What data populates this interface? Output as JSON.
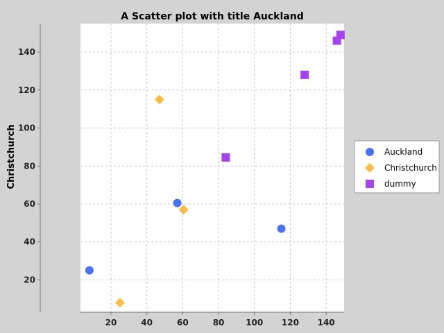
{
  "chart_data": {
    "type": "scatter",
    "title": "A Scatter plot with title Auckland",
    "xlabel": "",
    "ylabel": "Christchurch",
    "xlim": [
      3,
      150
    ],
    "ylim": [
      3,
      155
    ],
    "xticks": [
      20,
      40,
      60,
      80,
      100,
      120,
      140
    ],
    "yticks": [
      20,
      40,
      60,
      80,
      100,
      120,
      140
    ],
    "grid": true,
    "legend_position": "right",
    "series": [
      {
        "name": "Auckland",
        "marker": "circle",
        "color": "#4b73ee",
        "points": [
          [
            8,
            25
          ],
          [
            57,
            60.5
          ],
          [
            115,
            47
          ]
        ]
      },
      {
        "name": "Christchurch",
        "marker": "diamond",
        "color": "#fbbd47",
        "points": [
          [
            25,
            8
          ],
          [
            47,
            115
          ],
          [
            60.5,
            57
          ]
        ]
      },
      {
        "name": "dummy",
        "marker": "square",
        "color": "#a543f0",
        "points": [
          [
            84,
            84.5
          ],
          [
            128,
            128
          ],
          [
            146,
            146
          ],
          [
            148,
            149
          ]
        ]
      }
    ]
  }
}
